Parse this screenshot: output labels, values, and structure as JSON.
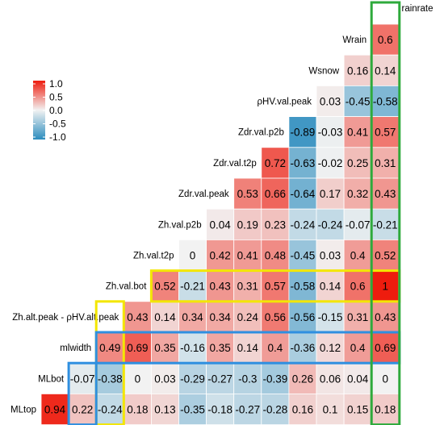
{
  "chart_data": {
    "type": "heatmap",
    "title": "",
    "variables": [
      "rainrate",
      "Wrain",
      "Wsnow",
      "ρHV.val.peak",
      "Zdr.val.p2b",
      "Zdr.val.t2p",
      "Zdr.val.peak",
      "Zh.val.p2b",
      "Zh.val.t2p",
      "Zh.val.bot",
      "Zh.alt.peak - ρHV.alt.peak",
      "mlwidth",
      "MLbot",
      "MLtop"
    ],
    "rows": [
      {
        "label": "Wrain",
        "values": [
          "0.6"
        ]
      },
      {
        "label": "Wsnow",
        "values": [
          "0.16",
          "0.14"
        ]
      },
      {
        "label": "ρHV.val.peak",
        "values": [
          "0.03",
          "-0.45",
          "-0.58"
        ]
      },
      {
        "label": "Zdr.val.p2b",
        "values": [
          "-0.89",
          "-0.03",
          "0.41",
          "0.57"
        ]
      },
      {
        "label": "Zdr.val.t2p",
        "values": [
          "0.72",
          "-0.63",
          "-0.02",
          "0.25",
          "0.31"
        ]
      },
      {
        "label": "Zdr.val.peak",
        "values": [
          "0.53",
          "0.66",
          "-0.64",
          "0.17",
          "0.32",
          "0.43"
        ]
      },
      {
        "label": "Zh.val.p2b",
        "values": [
          "0.04",
          "0.19",
          "0.23",
          "-0.24",
          "-0.24",
          "-0.07",
          "-0.21"
        ]
      },
      {
        "label": "Zh.val.t2p",
        "values": [
          "0",
          "0.42",
          "0.41",
          "0.48",
          "-0.45",
          "0.03",
          "0.4",
          "0.52"
        ]
      },
      {
        "label": "Zh.val.bot",
        "values": [
          "0.52",
          "-0.21",
          "0.43",
          "0.31",
          "0.57",
          "-0.58",
          "0.14",
          "0.6",
          "1"
        ]
      },
      {
        "label": "Zh.alt.peak - ρHV.alt.peak",
        "values": [
          "0.43",
          "0.14",
          "0.34",
          "0.34",
          "0.24",
          "0.56",
          "-0.56",
          "-0.15",
          "0.31",
          "0.43"
        ]
      },
      {
        "label": "mlwidth",
        "values": [
          "0.49",
          "0.69",
          "0.35",
          "-0.16",
          "0.35",
          "0.14",
          "0.4",
          "-0.36",
          "0.12",
          "0.4",
          "0.69"
        ]
      },
      {
        "label": "MLbot",
        "values": [
          "-0.07",
          "-0.38",
          "0",
          "0.03",
          "-0.29",
          "-0.27",
          "-0.3",
          "-0.39",
          "0.26",
          "0.06",
          "0.04",
          "0"
        ]
      },
      {
        "label": "MLtop",
        "values": [
          "0.94",
          "0.22",
          "-0.24",
          "0.18",
          "0.13",
          "-0.35",
          "-0.18",
          "-0.27",
          "-0.28",
          "0.16",
          "0.1",
          "0.15",
          "0.18"
        ]
      }
    ],
    "top_label": "rainrate",
    "legend": {
      "ticks": [
        "1.0",
        "0.5",
        "0.0",
        "-0.5",
        "-1.0"
      ],
      "range": [
        -1,
        1
      ],
      "colors": {
        "low": "#2b8cbe",
        "mid": "#f2f2f2",
        "high": "#ee1c0e"
      }
    },
    "highlights": {
      "yellow": "#f3e600",
      "blue": "#2f8fe0",
      "green": "#2eaa3c"
    }
  }
}
